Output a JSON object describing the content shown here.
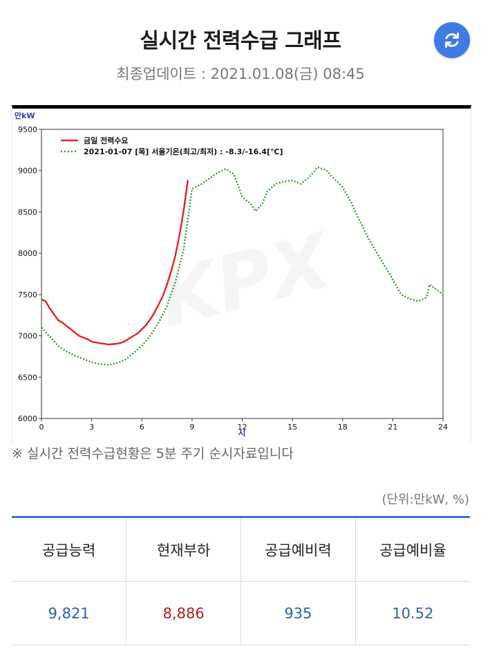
{
  "header": {
    "title": "실시간 전력수급 그래프",
    "updated_label": "최종업데이트 : ",
    "updated_value": "2021.01.08(금) 08:45",
    "refresh_icon": "refresh-icon"
  },
  "chart_data": {
    "type": "line",
    "y_unit": "만kW",
    "x_unit": "시",
    "watermark": "KPX",
    "xlim": [
      0,
      24
    ],
    "ylim": [
      6000,
      9500
    ],
    "x_ticks": [
      0,
      3,
      6,
      9,
      12,
      15,
      18,
      21,
      24
    ],
    "y_ticks": [
      6000,
      6500,
      7000,
      7500,
      8000,
      8500,
      9000,
      9500
    ],
    "grid": false,
    "legend_position": "top-left",
    "series": [
      {
        "name": "금일 전력수요",
        "color": "#e02424",
        "style": "solid",
        "points": [
          [
            0,
            7440
          ],
          [
            0.25,
            7420
          ],
          [
            0.5,
            7330
          ],
          [
            0.75,
            7260
          ],
          [
            1,
            7190
          ],
          [
            1.25,
            7160
          ],
          [
            1.5,
            7120
          ],
          [
            1.75,
            7080
          ],
          [
            2,
            7040
          ],
          [
            2.25,
            7000
          ],
          [
            2.5,
            6980
          ],
          [
            2.75,
            6960
          ],
          [
            3,
            6930
          ],
          [
            3.25,
            6920
          ],
          [
            3.5,
            6910
          ],
          [
            3.75,
            6905
          ],
          [
            4,
            6895
          ],
          [
            4.25,
            6900
          ],
          [
            4.5,
            6905
          ],
          [
            4.75,
            6915
          ],
          [
            5,
            6935
          ],
          [
            5.25,
            6970
          ],
          [
            5.5,
            7000
          ],
          [
            5.75,
            7030
          ],
          [
            6,
            7080
          ],
          [
            6.25,
            7130
          ],
          [
            6.5,
            7200
          ],
          [
            6.75,
            7280
          ],
          [
            7,
            7380
          ],
          [
            7.25,
            7480
          ],
          [
            7.5,
            7620
          ],
          [
            7.75,
            7780
          ],
          [
            8,
            7970
          ],
          [
            8.25,
            8220
          ],
          [
            8.5,
            8520
          ],
          [
            8.75,
            8886
          ]
        ]
      },
      {
        "name": "2021-01-07 [목] 서울기온(최고/최저) : -8.3/-16.4[℃]",
        "color": "#2a9a2a",
        "style": "dotted",
        "points": [
          [
            0,
            7100
          ],
          [
            0.5,
            6990
          ],
          [
            1,
            6880
          ],
          [
            1.5,
            6810
          ],
          [
            2,
            6760
          ],
          [
            2.5,
            6720
          ],
          [
            3,
            6680
          ],
          [
            3.5,
            6660
          ],
          [
            4,
            6650
          ],
          [
            4.5,
            6670
          ],
          [
            5,
            6710
          ],
          [
            5.5,
            6790
          ],
          [
            6,
            6880
          ],
          [
            6.5,
            7000
          ],
          [
            7,
            7160
          ],
          [
            7.5,
            7360
          ],
          [
            8,
            7650
          ],
          [
            8.5,
            8050
          ],
          [
            9,
            8780
          ],
          [
            9.5,
            8830
          ],
          [
            10,
            8900
          ],
          [
            10.5,
            8970
          ],
          [
            11,
            9020
          ],
          [
            11.5,
            8960
          ],
          [
            12,
            8680
          ],
          [
            12.5,
            8600
          ],
          [
            12.8,
            8510
          ],
          [
            13.2,
            8600
          ],
          [
            13.5,
            8750
          ],
          [
            14,
            8840
          ],
          [
            14.5,
            8870
          ],
          [
            15,
            8880
          ],
          [
            15.5,
            8840
          ],
          [
            16,
            8920
          ],
          [
            16.5,
            9040
          ],
          [
            17,
            9010
          ],
          [
            17.5,
            8900
          ],
          [
            18,
            8800
          ],
          [
            18.5,
            8620
          ],
          [
            19,
            8400
          ],
          [
            19.5,
            8200
          ],
          [
            20,
            8020
          ],
          [
            20.5,
            7850
          ],
          [
            21,
            7680
          ],
          [
            21.5,
            7500
          ],
          [
            22,
            7450
          ],
          [
            22.5,
            7420
          ],
          [
            23,
            7460
          ],
          [
            23.2,
            7620
          ],
          [
            23.5,
            7580
          ],
          [
            24,
            7500
          ]
        ]
      }
    ]
  },
  "note": "※ 실시간 전력수급현황은 5분 주기 순시자료입니다",
  "unit_label": "(단위:만kW, %)",
  "table": {
    "headers": [
      "공급능력",
      "현재부하",
      "공급예비력",
      "공급예비율"
    ],
    "values": [
      "9,821",
      "8,886",
      "935",
      "10.52"
    ],
    "highlight_color": "#b21d1d",
    "value_color": "#2f5fb3"
  }
}
